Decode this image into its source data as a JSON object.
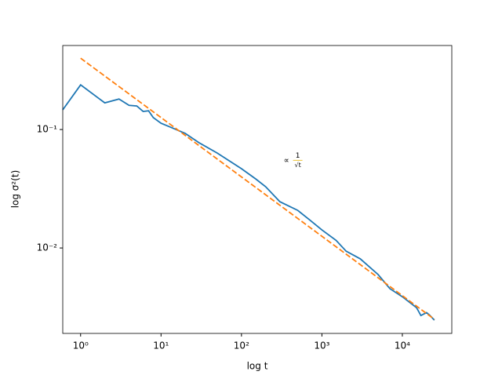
{
  "chart_data": {
    "type": "line",
    "xscale": "log",
    "yscale": "log",
    "xlabel": "log t",
    "ylabel": "log σ²(t)",
    "xlim": [
      0.6,
      41200
    ],
    "ylim": [
      0.0019,
      0.512
    ],
    "xticks": [
      {
        "value": 1,
        "label": "10⁰"
      },
      {
        "value": 10,
        "label": "10¹"
      },
      {
        "value": 100,
        "label": "10²"
      },
      {
        "value": 1000,
        "label": "10³"
      },
      {
        "value": 10000,
        "label": "10⁴"
      }
    ],
    "yticks": [
      {
        "value": 0.1,
        "label": "10⁻¹"
      },
      {
        "value": 0.01,
        "label": "10⁻²"
      }
    ],
    "annotation": {
      "prefix": "∝",
      "numerator": "1",
      "denominator": "√t",
      "color": "#e8b400",
      "x": 400,
      "y": 0.055
    },
    "series": [
      {
        "color": "#1f77b4",
        "dashed": false,
        "x": [
          0.6,
          1,
          2,
          3,
          4,
          5,
          6,
          7,
          8,
          10,
          13,
          20,
          30,
          50,
          100,
          150,
          200,
          300,
          500,
          700,
          1000,
          1500,
          2000,
          3000,
          5000,
          7000,
          10000,
          15000,
          17000,
          20000,
          22000,
          25000
        ],
        "values": [
          0.1466,
          0.238,
          0.168,
          0.181,
          0.16,
          0.158,
          0.142,
          0.144,
          0.126,
          0.113,
          0.105,
          0.0927,
          0.077,
          0.0633,
          0.0467,
          0.0383,
          0.0329,
          0.0246,
          0.0208,
          0.0173,
          0.0142,
          0.0116,
          0.0094,
          0.0081,
          0.00596,
          0.00453,
          0.00388,
          0.00314,
          0.00269,
          0.00285,
          0.0027,
          0.00246
        ]
      },
      {
        "color": "#ff7f0e",
        "dashed": true,
        "x": [
          1,
          25000
        ],
        "values": [
          0.4,
          0.0025
        ]
      }
    ]
  }
}
